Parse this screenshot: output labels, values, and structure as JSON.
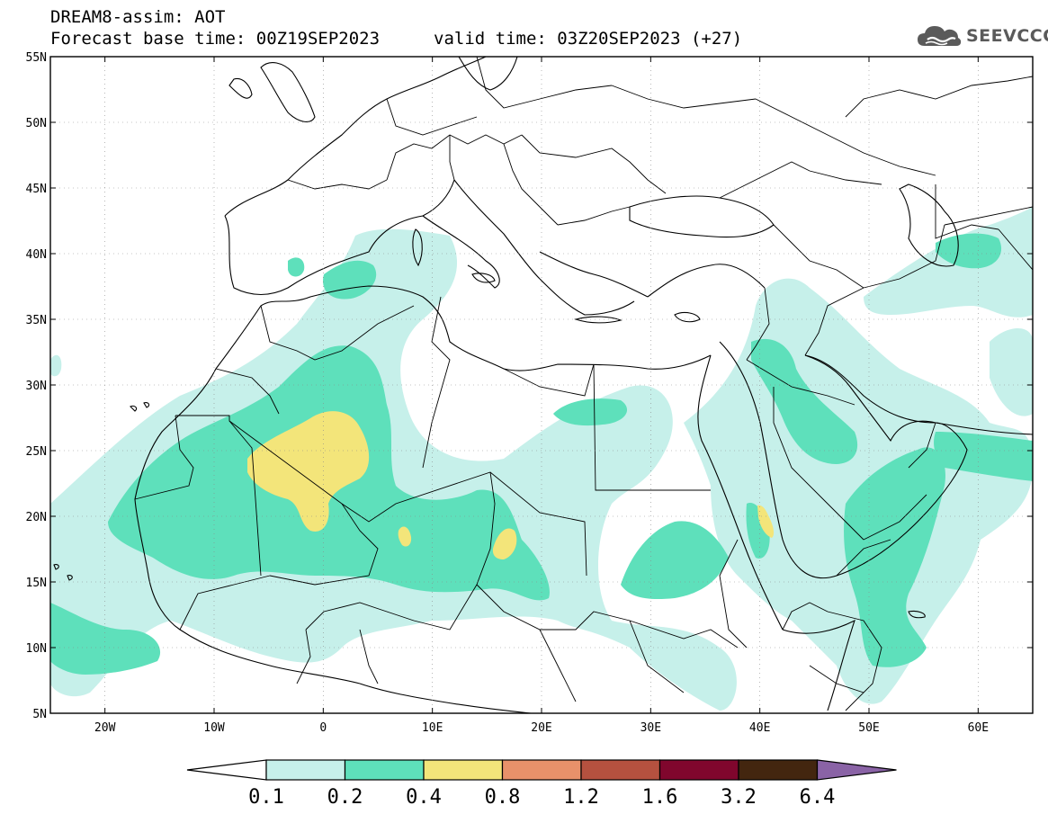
{
  "header": {
    "title": "DREAM8-assim: AOT",
    "forecast_base": "Forecast base time: 00Z19SEP2023",
    "valid_time": "valid time: 03Z20SEP2023 (+27)",
    "logo_text": "SEEVCCC"
  },
  "map": {
    "lon_range": [
      -25,
      65
    ],
    "lat_range": [
      5,
      55
    ],
    "lat_ticks": [
      {
        "value": 55,
        "label": "55N"
      },
      {
        "value": 50,
        "label": "50N"
      },
      {
        "value": 45,
        "label": "45N"
      },
      {
        "value": 40,
        "label": "40N"
      },
      {
        "value": 35,
        "label": "35N"
      },
      {
        "value": 30,
        "label": "30N"
      },
      {
        "value": 25,
        "label": "25N"
      },
      {
        "value": 20,
        "label": "20N"
      },
      {
        "value": 15,
        "label": "15N"
      },
      {
        "value": 10,
        "label": "10N"
      },
      {
        "value": 5,
        "label": "5N"
      }
    ],
    "lon_ticks": [
      {
        "value": -20,
        "label": "20W"
      },
      {
        "value": -10,
        "label": "10W"
      },
      {
        "value": 0,
        "label": "0"
      },
      {
        "value": 10,
        "label": "10E"
      },
      {
        "value": 20,
        "label": "20E"
      },
      {
        "value": 30,
        "label": "30E"
      },
      {
        "value": 40,
        "label": "40E"
      },
      {
        "value": 50,
        "label": "50E"
      },
      {
        "value": 60,
        "label": "60E"
      }
    ],
    "grid": "dotted",
    "colors": {
      "aot_0_1": "#c6f0ea",
      "aot_0_2": "#5ee0bb",
      "aot_0_4": "#f3e57a",
      "border": "#000000"
    }
  },
  "colorbar": {
    "labels": [
      "0.1",
      "0.2",
      "0.4",
      "0.8",
      "1.2",
      "1.6",
      "3.2",
      "6.4"
    ],
    "colors": [
      "#ffffff",
      "#c6f0ea",
      "#5ee0bb",
      "#f3e57a",
      "#e8916a",
      "#b5513f",
      "#80062d",
      "#43260f",
      "#8a63a6"
    ]
  }
}
